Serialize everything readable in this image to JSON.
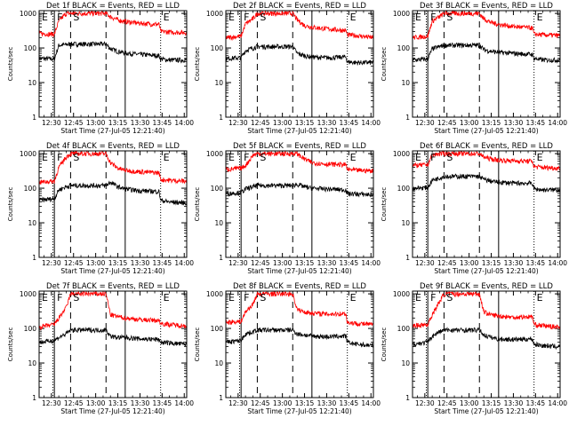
{
  "colors": {
    "events": "#000000",
    "lld": "#ff0000",
    "background": "#ffffff"
  },
  "chart_data": {
    "type": "line",
    "layout": "grid 3x3",
    "xlabel": "Start Time (27-Jul-05 12:21:40)",
    "ylabel": "Counts/sec",
    "x_tick_labels": [
      "12:30",
      "12:45",
      "13:00",
      "13:15",
      "13:30",
      "13:45",
      "14:00"
    ],
    "xlim": [
      "12:21:40",
      "14:01:40"
    ],
    "ylim": [
      1,
      1200
    ],
    "yscale": "log",
    "y_tick_labels": [
      "1",
      "10",
      "100",
      "1000"
    ],
    "grid": false,
    "marker_times": {
      "solid": [
        "12:32",
        "13:20"
      ],
      "dashed": [
        "12:43",
        "13:07"
      ],
      "dotted": [
        "12:31",
        "13:44"
      ]
    },
    "panels": [
      {
        "title": "Det 1f BLACK = Events, RED = LLD",
        "labels": {
          "E1": "E",
          "F": "F",
          "S": "S",
          "E2": "E"
        },
        "series": [
          {
            "name": "BLACK = Events",
            "color": "#000000",
            "x": [
              "12:22",
              "12:32",
              "12:35",
              "12:40",
              "12:43",
              "13:07",
              "13:10",
              "13:15",
              "13:20",
              "13:30",
              "13:43",
              "13:44",
              "13:50",
              "14:01"
            ],
            "y": [
              50,
              48,
              120,
              125,
              130,
              130,
              95,
              80,
              72,
              65,
              60,
              48,
              45,
              45
            ]
          },
          {
            "name": "RED = LLD",
            "color": "#ff0000",
            "x": [
              "12:22",
              "12:32",
              "12:35",
              "12:40",
              "12:43",
              "13:07",
              "13:10",
              "13:15",
              "13:20",
              "13:30",
              "13:43",
              "13:44",
              "13:50",
              "14:01"
            ],
            "y": [
              260,
              250,
              600,
              1000,
              1000,
              1000,
              800,
              650,
              580,
              520,
              480,
              300,
              290,
              280
            ]
          }
        ]
      },
      {
        "title": "Det 2f BLACK = Events, RED = LLD",
        "labels": {
          "E1": "E",
          "F": "F",
          "S": "S",
          "E2": "E"
        },
        "series": [
          {
            "name": "BLACK = Events",
            "color": "#000000",
            "x": [
              "12:22",
              "12:32",
              "12:35",
              "12:40",
              "12:43",
              "13:07",
              "13:10",
              "13:15",
              "13:20",
              "13:30",
              "13:43",
              "13:44",
              "13:50",
              "14:01"
            ],
            "y": [
              50,
              52,
              85,
              100,
              110,
              110,
              70,
              60,
              55,
              52,
              55,
              40,
              38,
              38
            ]
          },
          {
            "name": "RED = LLD",
            "color": "#ff0000",
            "x": [
              "12:22",
              "12:32",
              "12:35",
              "12:40",
              "12:43",
              "13:07",
              "13:10",
              "13:15",
              "13:20",
              "13:30",
              "13:43",
              "13:44",
              "13:50",
              "14:01"
            ],
            "y": [
              200,
              220,
              500,
              700,
              1000,
              1000,
              650,
              450,
              400,
              360,
              320,
              240,
              230,
              200
            ]
          }
        ]
      },
      {
        "title": "Det 3f BLACK = Events, RED = LLD",
        "labels": {
          "E1": "E",
          "F": "F",
          "S": "S",
          "E2": "E"
        },
        "series": [
          {
            "name": "BLACK = Events",
            "color": "#000000",
            "x": [
              "12:22",
              "12:32",
              "12:35",
              "12:40",
              "12:43",
              "13:07",
              "13:10",
              "13:15",
              "13:20",
              "13:30",
              "13:43",
              "13:44",
              "13:50",
              "14:01"
            ],
            "y": [
              45,
              48,
              95,
              110,
              120,
              120,
              90,
              80,
              75,
              70,
              65,
              50,
              45,
              45
            ]
          },
          {
            "name": "RED = LLD",
            "color": "#ff0000",
            "x": [
              "12:22",
              "12:32",
              "12:35",
              "12:40",
              "12:43",
              "13:07",
              "13:10",
              "13:15",
              "13:20",
              "13:30",
              "13:43",
              "13:44",
              "13:50",
              "14:01"
            ],
            "y": [
              200,
              220,
              600,
              800,
              1000,
              1000,
              700,
              550,
              480,
              420,
              380,
              250,
              240,
              230
            ]
          }
        ]
      },
      {
        "title": "Det 4f BLACK = Events, RED = LLD",
        "labels": {
          "E1": "E",
          "F": "F",
          "S": "S",
          "E2": "E"
        },
        "series": [
          {
            "name": "BLACK = Events",
            "color": "#000000",
            "x": [
              "12:22",
              "12:32",
              "12:35",
              "12:40",
              "12:43",
              "13:07",
              "13:10",
              "13:15",
              "13:20",
              "13:30",
              "13:43",
              "13:44",
              "13:50",
              "14:01"
            ],
            "y": [
              45,
              50,
              90,
              110,
              120,
              120,
              150,
              110,
              95,
              85,
              80,
              45,
              40,
              38
            ]
          },
          {
            "name": "RED = LLD",
            "color": "#ff0000",
            "x": [
              "12:22",
              "12:32",
              "12:35",
              "12:40",
              "12:43",
              "13:07",
              "13:10",
              "13:15",
              "13:20",
              "13:30",
              "13:43",
              "13:44",
              "13:50",
              "14:01"
            ],
            "y": [
              150,
              160,
              400,
              800,
              1000,
              1000,
              550,
              380,
              330,
              300,
              280,
              180,
              170,
              160
            ]
          }
        ]
      },
      {
        "title": "Det 5f BLACK = Events, RED = LLD",
        "labels": {
          "E1": "E",
          "F": "F",
          "S": "S",
          "E2": "E"
        },
        "series": [
          {
            "name": "BLACK = Events",
            "color": "#000000",
            "x": [
              "12:22",
              "12:32",
              "12:35",
              "12:40",
              "12:43",
              "13:07",
              "13:10",
              "13:15",
              "13:20",
              "13:30",
              "13:43",
              "13:44",
              "13:50",
              "14:01"
            ],
            "y": [
              70,
              75,
              95,
              110,
              120,
              120,
              130,
              110,
              100,
              95,
              90,
              70,
              68,
              65
            ]
          },
          {
            "name": "RED = LLD",
            "color": "#ff0000",
            "x": [
              "12:22",
              "12:32",
              "12:35",
              "12:40",
              "12:43",
              "13:07",
              "13:10",
              "13:15",
              "13:20",
              "13:30",
              "13:43",
              "13:44",
              "13:50",
              "14:01"
            ],
            "y": [
              350,
              380,
              450,
              900,
              1000,
              1000,
              1000,
              700,
              550,
              500,
              480,
              350,
              330,
              320
            ]
          }
        ]
      },
      {
        "title": "Det 6f BLACK = Events, RED = LLD",
        "labels": {
          "E1": "E",
          "F": "F",
          "S": "S",
          "E2": "E"
        },
        "series": [
          {
            "name": "BLACK = Events",
            "color": "#000000",
            "x": [
              "12:22",
              "12:32",
              "12:35",
              "12:40",
              "12:43",
              "13:07",
              "13:10",
              "13:15",
              "13:20",
              "13:30",
              "13:43",
              "13:44",
              "13:50",
              "14:01"
            ],
            "y": [
              100,
              105,
              170,
              200,
              220,
              220,
              180,
              160,
              150,
              140,
              140,
              95,
              90,
              90
            ]
          },
          {
            "name": "RED = LLD",
            "color": "#ff0000",
            "x": [
              "12:22",
              "12:32",
              "12:35",
              "12:40",
              "12:43",
              "13:07",
              "13:10",
              "13:15",
              "13:20",
              "13:30",
              "13:43",
              "13:44",
              "13:50",
              "14:01"
            ],
            "y": [
              450,
              480,
              900,
              1000,
              1000,
              1000,
              800,
              700,
              650,
              620,
              600,
              420,
              400,
              380
            ]
          }
        ]
      },
      {
        "title": "Det 7f BLACK = Events, RED = LLD",
        "labels": {
          "E1": "E",
          "F": "F",
          "S": "S",
          "E2": "E"
        },
        "series": [
          {
            "name": "BLACK = Events",
            "color": "#000000",
            "x": [
              "12:22",
              "12:32",
              "12:35",
              "12:40",
              "12:43",
              "13:07",
              "13:10",
              "13:15",
              "13:20",
              "13:30",
              "13:43",
              "13:44",
              "13:50",
              "14:01"
            ],
            "y": [
              40,
              45,
              55,
              70,
              90,
              90,
              60,
              55,
              55,
              50,
              48,
              40,
              38,
              35
            ]
          },
          {
            "name": "RED = LLD",
            "color": "#ff0000",
            "x": [
              "12:22",
              "12:32",
              "12:35",
              "12:40",
              "12:43",
              "13:07",
              "13:10",
              "13:15",
              "13:20",
              "13:30",
              "13:43",
              "13:44",
              "13:50",
              "14:01"
            ],
            "y": [
              110,
              130,
              200,
              400,
              1000,
              1000,
              250,
              220,
              200,
              180,
              170,
              140,
              130,
              120
            ]
          }
        ]
      },
      {
        "title": "Det 8f BLACK = Events, RED = LLD",
        "labels": {
          "E1": "E",
          "F": "F",
          "S": "S",
          "E2": "E"
        },
        "series": [
          {
            "name": "BLACK = Events",
            "color": "#000000",
            "x": [
              "12:22",
              "12:32",
              "12:35",
              "12:40",
              "12:43",
              "13:07",
              "13:10",
              "13:15",
              "13:20",
              "13:30",
              "13:43",
              "13:44",
              "13:50",
              "14:01"
            ],
            "y": [
              40,
              45,
              70,
              80,
              90,
              90,
              70,
              65,
              60,
              58,
              60,
              40,
              35,
              32
            ]
          },
          {
            "name": "RED = LLD",
            "color": "#ff0000",
            "x": [
              "12:22",
              "12:32",
              "12:35",
              "12:40",
              "12:43",
              "13:07",
              "13:10",
              "13:15",
              "13:20",
              "13:30",
              "13:43",
              "13:44",
              "13:50",
              "14:01"
            ],
            "y": [
              150,
              160,
              300,
              500,
              1000,
              1000,
              350,
              300,
              280,
              260,
              270,
              150,
              140,
              130
            ]
          }
        ]
      },
      {
        "title": "Det 9f BLACK = Events, RED = LLD",
        "labels": {
          "E1": "E",
          "F": "F",
          "S": "S",
          "E2": "E"
        },
        "series": [
          {
            "name": "BLACK = Events",
            "color": "#000000",
            "x": [
              "12:22",
              "12:32",
              "12:35",
              "12:40",
              "12:43",
              "13:07",
              "13:10",
              "13:15",
              "13:20",
              "13:30",
              "13:43",
              "13:44",
              "13:50",
              "14:01"
            ],
            "y": [
              35,
              40,
              60,
              80,
              90,
              90,
              65,
              55,
              50,
              48,
              50,
              35,
              32,
              30
            ]
          },
          {
            "name": "RED = LLD",
            "color": "#ff0000",
            "x": [
              "12:22",
              "12:32",
              "12:35",
              "12:40",
              "12:43",
              "13:07",
              "13:10",
              "13:15",
              "13:20",
              "13:30",
              "13:43",
              "13:44",
              "13:50",
              "14:01"
            ],
            "y": [
              120,
              130,
              250,
              600,
              1000,
              1000,
              300,
              250,
              230,
              210,
              220,
              130,
              120,
              110
            ]
          }
        ]
      }
    ]
  }
}
